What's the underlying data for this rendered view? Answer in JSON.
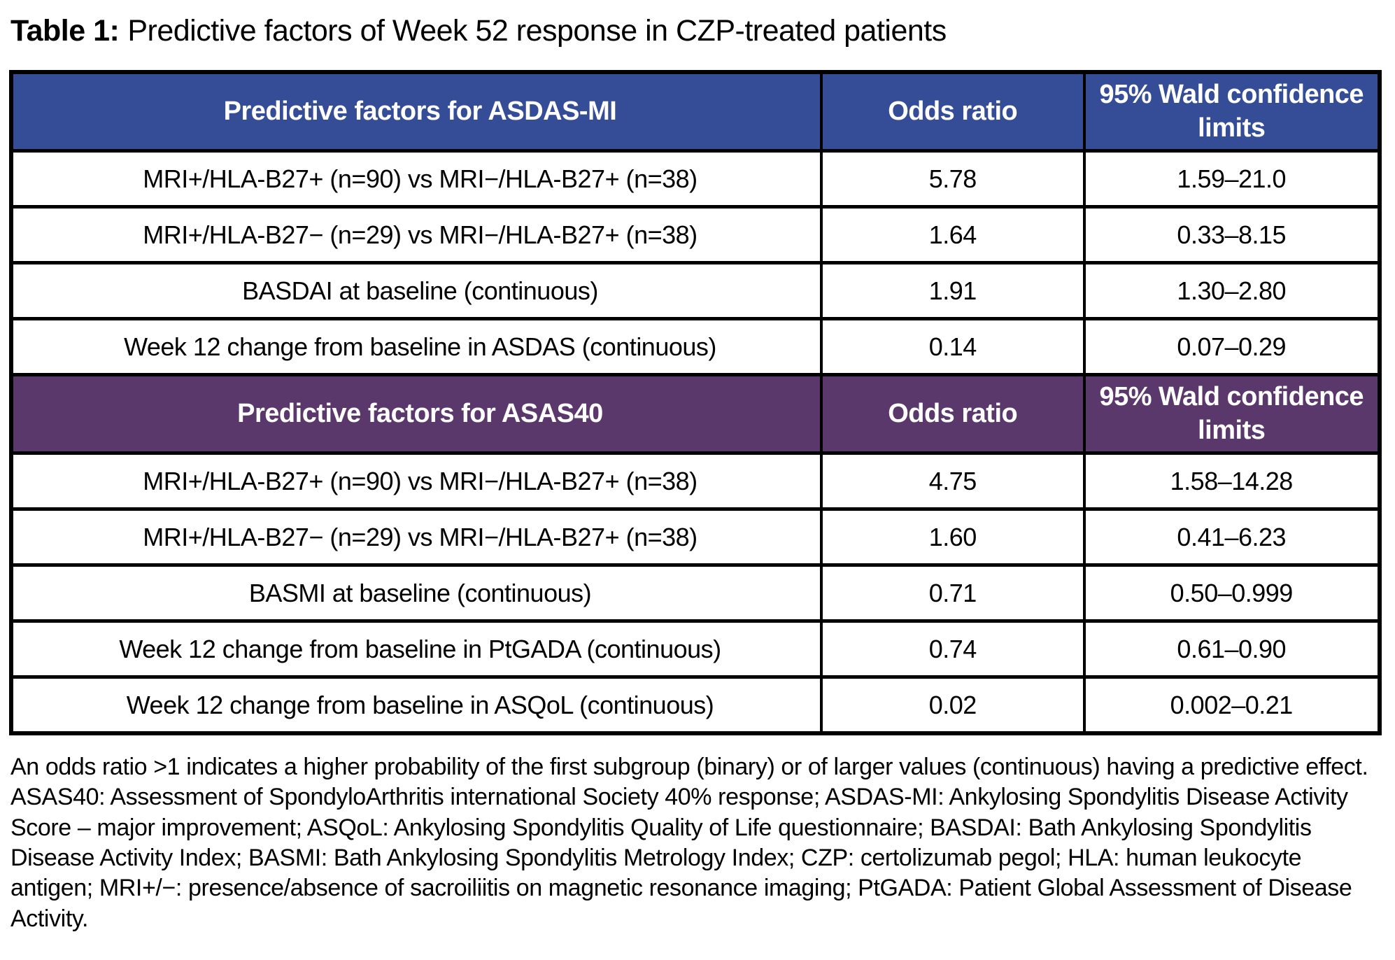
{
  "title": {
    "label": "Table 1:",
    "caption": "Predictive factors of Week 52 response in CZP-treated patients"
  },
  "colors": {
    "section1_header_bg": "#354C96",
    "section2_header_bg": "#5B386C",
    "header_text": "#FFFFFF",
    "border": "#000000",
    "body_text": "#000000"
  },
  "sections": [
    {
      "header": {
        "title": "Predictive factors for ASDAS-MI",
        "odds_ratio": "Odds ratio",
        "ci": "95% Wald confidence limits"
      },
      "rows": [
        {
          "factor": "MRI+/HLA-B27+ (n=90) vs MRI−/HLA-B27+ (n=38)",
          "odds_ratio": "5.78",
          "ci": "1.59–21.0"
        },
        {
          "factor": "MRI+/HLA-B27− (n=29) vs MRI−/HLA-B27+ (n=38)",
          "odds_ratio": "1.64",
          "ci": "0.33–8.15"
        },
        {
          "factor": "BASDAI at baseline (continuous)",
          "odds_ratio": "1.91",
          "ci": "1.30–2.80"
        },
        {
          "factor": "Week 12 change from baseline in ASDAS (continuous)",
          "odds_ratio": "0.14",
          "ci": "0.07–0.29"
        }
      ]
    },
    {
      "header": {
        "title": "Predictive factors for ASAS40",
        "odds_ratio": "Odds ratio",
        "ci": "95% Wald confidence limits"
      },
      "rows": [
        {
          "factor": "MRI+/HLA-B27+ (n=90) vs MRI−/HLA-B27+ (n=38)",
          "odds_ratio": "4.75",
          "ci": "1.58–14.28"
        },
        {
          "factor": "MRI+/HLA-B27− (n=29) vs MRI−/HLA-B27+ (n=38)",
          "odds_ratio": "1.60",
          "ci": "0.41–6.23"
        },
        {
          "factor": "BASMI at baseline (continuous)",
          "odds_ratio": "0.71",
          "ci": "0.50–0.999"
        },
        {
          "factor": "Week 12 change from baseline in PtGADA (continuous)",
          "odds_ratio": "0.74",
          "ci": "0.61–0.90"
        },
        {
          "factor": "Week 12 change from baseline in ASQoL (continuous)",
          "odds_ratio": "0.02",
          "ci": "0.002–0.21"
        }
      ]
    }
  ],
  "footnote": "An odds ratio >1 indicates a higher probability of the first subgroup (binary) or of larger values (continuous) having a predictive effect. ASAS40: Assessment of SpondyloArthritis international Society 40% response; ASDAS-MI: Ankylosing Spondylitis Disease Activity Score – major improvement; ASQoL: Ankylosing Spondylitis Quality of Life questionnaire; BASDAI: Bath Ankylosing Spondylitis Disease Activity Index; BASMI: Bath Ankylosing Spondylitis Metrology Index; CZP: certolizumab pegol; HLA: human leukocyte antigen; MRI+/−: presence/absence of sacroiliitis on magnetic resonance imaging; PtGADA: Patient Global Assessment of Disease Activity."
}
